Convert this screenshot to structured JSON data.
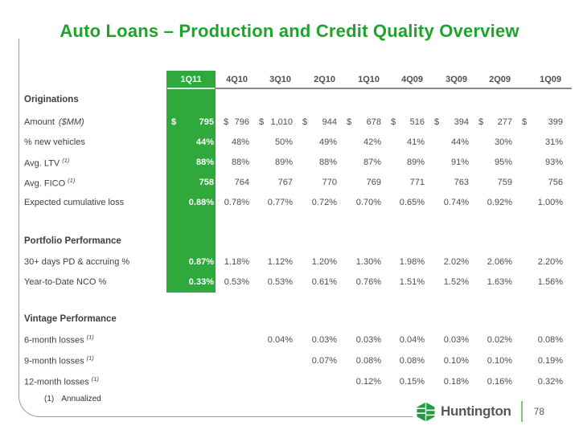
{
  "slide": {
    "title": "Auto Loans – Production and Credit Quality Overview",
    "footnote": {
      "marker": "(1)",
      "text": "Annualized"
    },
    "footer": {
      "brand": "Huntington",
      "page": "78"
    }
  },
  "colors": {
    "accent_green": "#2fa83c",
    "title_green": "#1fa32b",
    "line_gray": "#8c8c8c"
  },
  "table": {
    "currency_symbol": "$",
    "quarters": [
      "1Q11",
      "4Q10",
      "3Q10",
      "2Q10",
      "1Q10",
      "4Q09",
      "3Q09",
      "2Q09",
      "1Q09"
    ],
    "sections": [
      {
        "title": "Originations",
        "rows": [
          {
            "label": "Amount",
            "note": "($MM)",
            "currency": true,
            "values": [
              "795",
              "796",
              "1,010",
              "944",
              "678",
              "516",
              "394",
              "277",
              "399"
            ]
          },
          {
            "label": "% new vehicles",
            "values": [
              "44%",
              "48%",
              "50%",
              "49%",
              "42%",
              "41%",
              "44%",
              "30%",
              "31%"
            ]
          },
          {
            "label": "Avg. LTV",
            "sup": "(1)",
            "values": [
              "88%",
              "88%",
              "89%",
              "88%",
              "87%",
              "89%",
              "91%",
              "95%",
              "93%"
            ]
          },
          {
            "label": "Avg. FICO",
            "sup": "(1)",
            "values": [
              "758",
              "764",
              "767",
              "770",
              "769",
              "771",
              "763",
              "759",
              "756"
            ]
          },
          {
            "label": "Expected cumulative loss",
            "values": [
              "0.88%",
              "0.78%",
              "0.77%",
              "0.72%",
              "0.70%",
              "0.65%",
              "0.74%",
              "0.92%",
              "1.00%"
            ]
          }
        ]
      },
      {
        "title": "Portfolio Performance",
        "rows": [
          {
            "label": "30+ days PD & accruing %",
            "values": [
              "0.87%",
              "1.18%",
              "1.12%",
              "1.20%",
              "1.30%",
              "1.98%",
              "2.02%",
              "2.06%",
              "2.20%"
            ]
          },
          {
            "label": "Year-to-Date NCO %",
            "values": [
              "0.33%",
              "0.53%",
              "0.53%",
              "0.61%",
              "0.76%",
              "1.51%",
              "1.52%",
              "1.63%",
              "1.56%"
            ]
          }
        ]
      },
      {
        "title": "Vintage Performance",
        "rows": [
          {
            "label": "6-month losses",
            "sup": "(1)",
            "values": [
              "",
              "",
              "0.04%",
              "0.03%",
              "0.03%",
              "0.04%",
              "0.03%",
              "0.02%",
              "0.08%"
            ]
          },
          {
            "label": "9-month losses",
            "sup": "(1)",
            "values": [
              "",
              "",
              "",
              "0.07%",
              "0.08%",
              "0.08%",
              "0.10%",
              "0.10%",
              "0.19%"
            ]
          },
          {
            "label": "12-month losses",
            "sup": "(1)",
            "values": [
              "",
              "",
              "",
              "",
              "0.12%",
              "0.15%",
              "0.18%",
              "0.16%",
              "0.32%"
            ]
          }
        ]
      }
    ]
  }
}
